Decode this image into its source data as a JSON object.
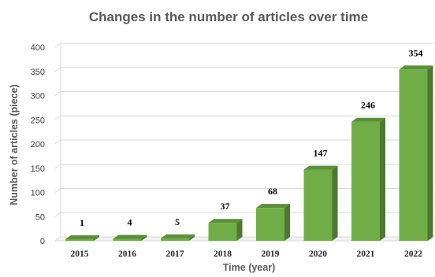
{
  "chart_data": {
    "type": "bar",
    "title": "Changes in the number of articles over time",
    "xlabel": "Time (year)",
    "ylabel": "Number of articles (piece)",
    "categories": [
      "2015",
      "2016",
      "2017",
      "2018",
      "2019",
      "2020",
      "2021",
      "2022"
    ],
    "values": [
      1,
      4,
      5,
      37,
      68,
      147,
      246,
      354
    ],
    "ylim": [
      0,
      400
    ],
    "yticks": [
      "0",
      "50",
      "100",
      "150",
      "200",
      "250",
      "300",
      "350",
      "400"
    ],
    "grid": true,
    "legend": "none",
    "colors": {
      "bar_front": "#70ad47",
      "bar_side": "#4b7a2c",
      "bar_top": "#5c8f38",
      "grid": "#d9d9d9",
      "floor": "#d9d9d9"
    }
  }
}
